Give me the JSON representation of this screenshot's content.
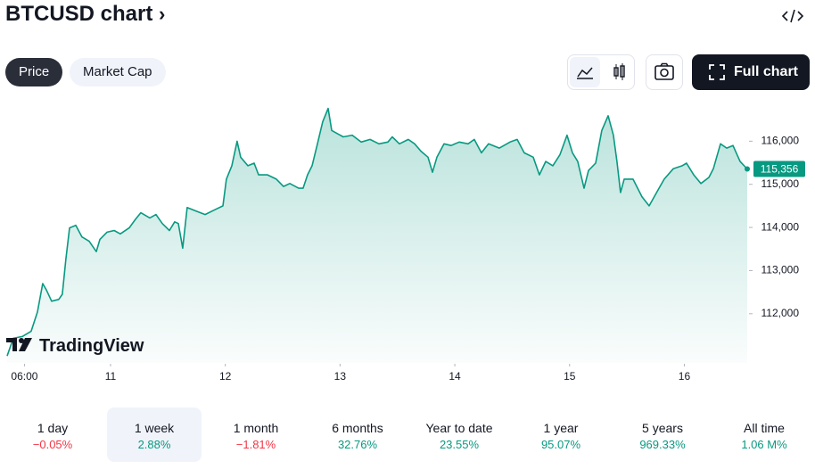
{
  "header": {
    "title": "BTCUSD chart"
  },
  "tabs": [
    "Price",
    "Market Cap"
  ],
  "full_chart_button": "Full chart",
  "brand": "TradingView",
  "chart_data": {
    "type": "area",
    "x": [
      10.099,
      10.153,
      10.231,
      10.308,
      10.363,
      10.409,
      10.441,
      10.487,
      10.549,
      10.58,
      10.611,
      10.643,
      10.697,
      10.751,
      10.814,
      10.876,
      10.907,
      10.969,
      11.031,
      11.085,
      11.163,
      11.218,
      11.264,
      11.342,
      11.396,
      11.451,
      11.513,
      11.559,
      11.591,
      11.629,
      11.668,
      11.746,
      11.824,
      11.902,
      11.979,
      12.01,
      12.057,
      12.103,
      12.134,
      12.197,
      12.251,
      12.29,
      12.368,
      12.445,
      12.507,
      12.562,
      12.639,
      12.678,
      12.717,
      12.756,
      12.803,
      12.849,
      12.896,
      12.927,
      12.974,
      13.028,
      13.106,
      13.184,
      13.261,
      13.339,
      13.417,
      13.455,
      13.517,
      13.595,
      13.65,
      13.704,
      13.766,
      13.805,
      13.844,
      13.906,
      13.968,
      14.038,
      14.116,
      14.17,
      14.232,
      14.294,
      14.388,
      14.481,
      14.543,
      14.605,
      14.683,
      14.737,
      14.792,
      14.854,
      14.916,
      14.978,
      15.025,
      15.071,
      15.126,
      15.165,
      15.227,
      15.281,
      15.336,
      15.382,
      15.413,
      15.444,
      15.476,
      15.553,
      15.631,
      15.693,
      15.771,
      15.825,
      15.903,
      15.981,
      16.019,
      16.082,
      16.144,
      16.214,
      16.253,
      16.315,
      16.369,
      16.424,
      16.486,
      16.548
    ],
    "series": [
      {
        "name": "BTCUSD",
        "color": "#089981",
        "values": [
          111020,
          111430,
          111470,
          111590,
          112040,
          112700,
          112550,
          112290,
          112330,
          112450,
          113270,
          113990,
          114050,
          113780,
          113680,
          113440,
          113720,
          113890,
          113930,
          113850,
          113990,
          114190,
          114340,
          114220,
          114300,
          114090,
          113930,
          114130,
          114090,
          113520,
          114460,
          114380,
          114300,
          114400,
          114500,
          115120,
          115430,
          116000,
          115630,
          115430,
          115490,
          115220,
          115220,
          115120,
          114950,
          115020,
          114910,
          114910,
          115220,
          115430,
          115940,
          116450,
          116760,
          116250,
          116180,
          116100,
          116140,
          115980,
          116040,
          115940,
          115980,
          116100,
          115940,
          116040,
          115940,
          115770,
          115630,
          115280,
          115630,
          115940,
          115900,
          115980,
          115940,
          116040,
          115730,
          115940,
          115840,
          115980,
          116040,
          115730,
          115630,
          115220,
          115530,
          115430,
          115690,
          116140,
          115730,
          115530,
          114910,
          115320,
          115490,
          116250,
          116590,
          116140,
          115530,
          114810,
          115120,
          115120,
          114710,
          114500,
          114870,
          115120,
          115360,
          115430,
          115490,
          115220,
          115020,
          115160,
          115360,
          115940,
          115840,
          115900,
          115530,
          115356
        ]
      }
    ],
    "xlim": [
      10.099,
      16.548
    ],
    "xticks": [
      {
        "value": 10.25,
        "label": "06:00"
      },
      11,
      12,
      13,
      14,
      15,
      16
    ],
    "ylim": [
      110900,
      117000
    ],
    "yticks": [
      {
        "value": 112000,
        "label": "112,000"
      },
      {
        "value": 113000,
        "label": "113,000"
      },
      {
        "value": 114000,
        "label": "114,000"
      },
      {
        "value": 115000,
        "label": "115,000"
      },
      {
        "value": 116000,
        "label": "116,000"
      }
    ],
    "price_label": {
      "value": 115356,
      "label": "115,356"
    }
  },
  "periods": [
    {
      "label": "1 day",
      "change": "−0.05%"
    },
    {
      "label": "1 week",
      "change": "2.88%"
    },
    {
      "label": "1 month",
      "change": "−1.81%"
    },
    {
      "label": "6 months",
      "change": "32.76%"
    },
    {
      "label": "Year to date",
      "change": "23.55%"
    },
    {
      "label": "1 year",
      "change": "95.07%"
    },
    {
      "label": "5 years",
      "change": "969.33%"
    },
    {
      "label": "All time",
      "change": "1.06 M%"
    }
  ]
}
